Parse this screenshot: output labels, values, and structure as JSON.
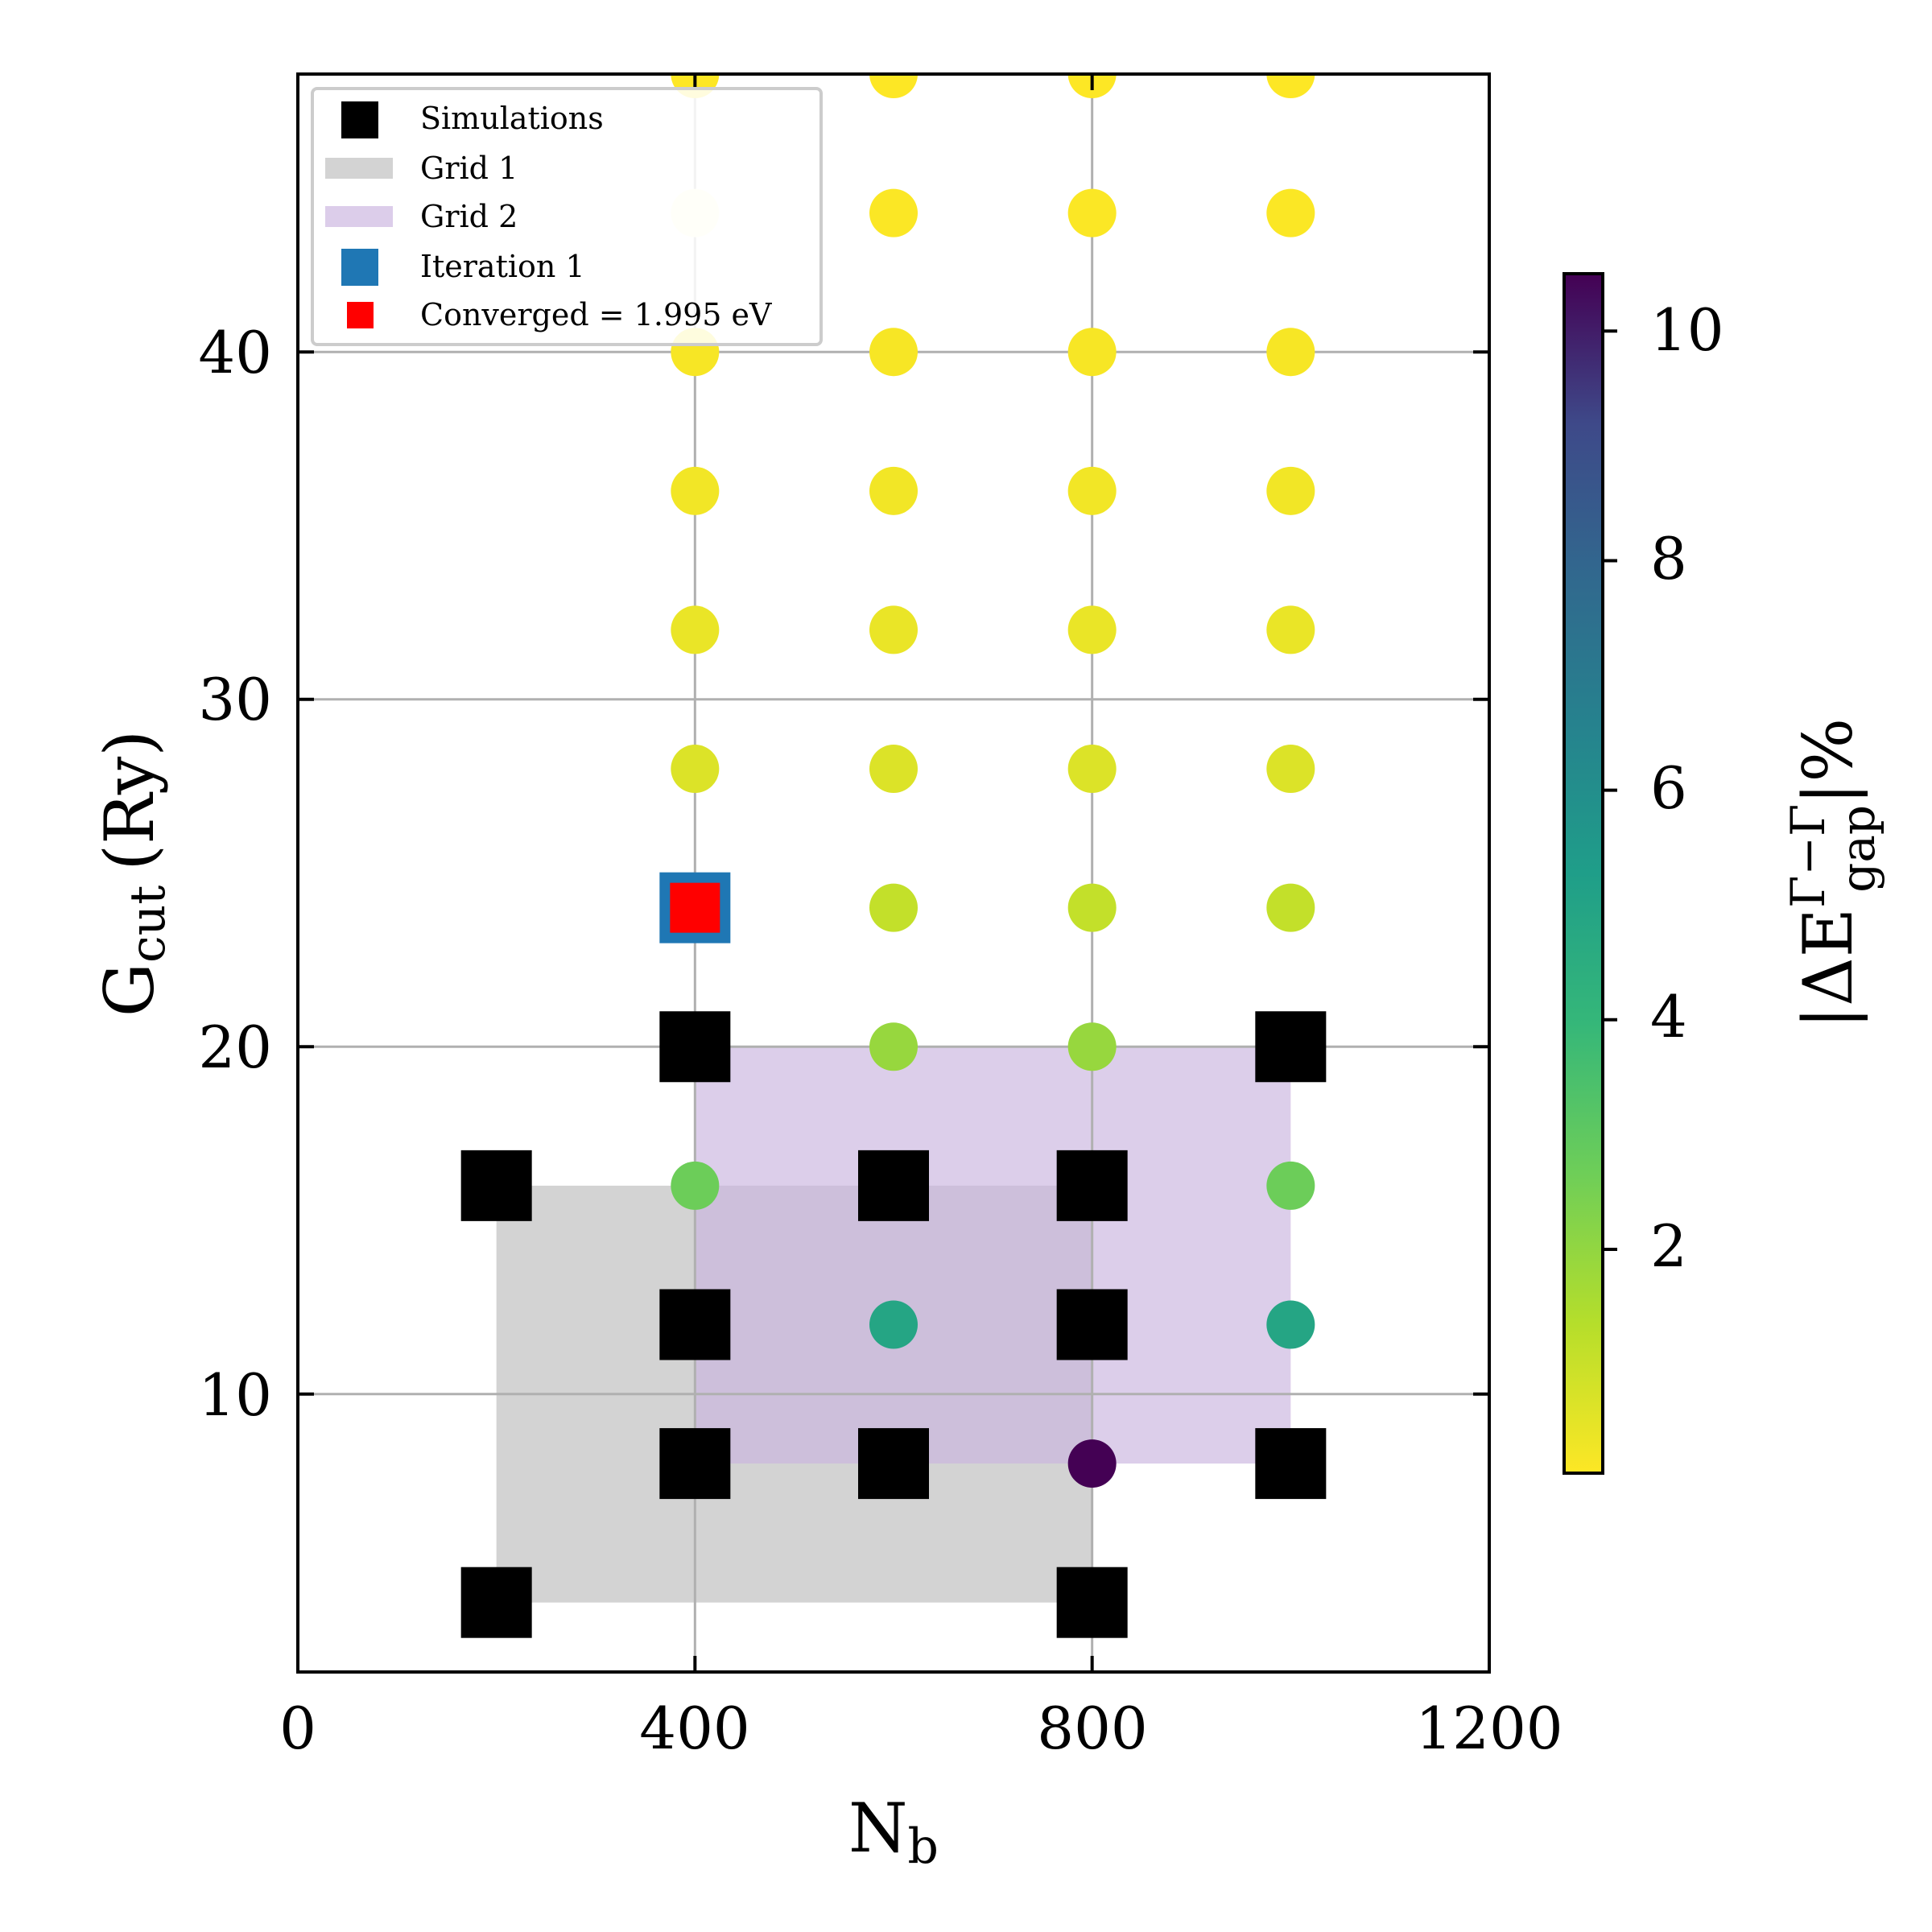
{
  "chart_data": {
    "type": "scatter",
    "xlabel": "N",
    "xlabel_sub": "b",
    "ylabel": "G",
    "ylabel_sub": "cut",
    "ylabel_unit": "(Ry)",
    "xlim": [
      0,
      1200
    ],
    "ylim": [
      2,
      48
    ],
    "xticks": [
      "0",
      "400",
      "800",
      "1200"
    ],
    "yticks": [
      "10",
      "20",
      "30",
      "40"
    ],
    "grid": true,
    "colorbar": {
      "label": "|ΔE",
      "label_sup": "Γ−Γ",
      "label_sub": "gap",
      "label_end": "|%",
      "range": [
        0.05,
        10.5
      ],
      "ticks": [
        "2",
        "4",
        "6",
        "8",
        "10"
      ],
      "colormap": "viridis_r"
    },
    "legend": {
      "placement": "upper-left",
      "entries": [
        {
          "key": "simulations",
          "label": "Simulations",
          "color": "#000000"
        },
        {
          "key": "grid1",
          "label": "Grid 1",
          "color": "#d3d3d3"
        },
        {
          "key": "grid2",
          "label": "Grid 2",
          "color": "#dccdea"
        },
        {
          "key": "iteration1",
          "label": "Iteration 1",
          "color": "#1f77b4"
        },
        {
          "key": "converged",
          "label": "Converged = 1.995 eV",
          "color": "#ff0000"
        }
      ]
    },
    "regions": [
      {
        "name": "Grid 1",
        "x": [
          200,
          800
        ],
        "y": [
          4,
          16
        ],
        "color": "#d3d3d3"
      },
      {
        "name": "Grid 2",
        "x": [
          400,
          1000
        ],
        "y": [
          8,
          20
        ],
        "color": "#c9b3df"
      }
    ],
    "simulations": [
      [
        200,
        4
      ],
      [
        800,
        4
      ],
      [
        400,
        8
      ],
      [
        600,
        8
      ],
      [
        1000,
        8
      ],
      [
        400,
        12
      ],
      [
        800,
        12
      ],
      [
        200,
        16
      ],
      [
        600,
        16
      ],
      [
        800,
        16
      ],
      [
        400,
        20
      ],
      [
        1000,
        20
      ]
    ],
    "errors": [
      {
        "x": 800,
        "y": 8,
        "v": 10.5
      },
      {
        "x": 600,
        "y": 12,
        "v": 4.9
      },
      {
        "x": 1000,
        "y": 12,
        "v": 4.9
      },
      {
        "x": 400,
        "y": 16,
        "v": 2.7
      },
      {
        "x": 1000,
        "y": 16,
        "v": 2.7
      },
      {
        "x": 600,
        "y": 20,
        "v": 1.9
      },
      {
        "x": 800,
        "y": 20,
        "v": 1.9
      },
      {
        "x": 600,
        "y": 24,
        "v": 1.1
      },
      {
        "x": 800,
        "y": 24,
        "v": 1.1
      },
      {
        "x": 1000,
        "y": 24,
        "v": 1.1
      },
      {
        "x": 400,
        "y": 28,
        "v": 0.65
      },
      {
        "x": 600,
        "y": 28,
        "v": 0.65
      },
      {
        "x": 800,
        "y": 28,
        "v": 0.65
      },
      {
        "x": 1000,
        "y": 28,
        "v": 0.65
      },
      {
        "x": 400,
        "y": 32,
        "v": 0.4
      },
      {
        "x": 600,
        "y": 32,
        "v": 0.4
      },
      {
        "x": 800,
        "y": 32,
        "v": 0.4
      },
      {
        "x": 1000,
        "y": 32,
        "v": 0.4
      },
      {
        "x": 400,
        "y": 36,
        "v": 0.25
      },
      {
        "x": 600,
        "y": 36,
        "v": 0.25
      },
      {
        "x": 800,
        "y": 36,
        "v": 0.25
      },
      {
        "x": 1000,
        "y": 36,
        "v": 0.25
      },
      {
        "x": 400,
        "y": 40,
        "v": 0.15
      },
      {
        "x": 600,
        "y": 40,
        "v": 0.15
      },
      {
        "x": 800,
        "y": 40,
        "v": 0.15
      },
      {
        "x": 1000,
        "y": 40,
        "v": 0.15
      },
      {
        "x": 400,
        "y": 44,
        "v": 0.08,
        "faded": true
      },
      {
        "x": 600,
        "y": 44,
        "v": 0.08
      },
      {
        "x": 800,
        "y": 44,
        "v": 0.08
      },
      {
        "x": 1000,
        "y": 44,
        "v": 0.08
      },
      {
        "x": 400,
        "y": 48,
        "v": 0.05
      },
      {
        "x": 600,
        "y": 48,
        "v": 0.05
      },
      {
        "x": 800,
        "y": 48,
        "v": 0.05
      },
      {
        "x": 1000,
        "y": 48,
        "v": 0.05
      }
    ],
    "iteration1": {
      "x": 400,
      "y": 24
    },
    "converged": {
      "x": 400,
      "y": 24,
      "value": "1.995 eV"
    }
  }
}
